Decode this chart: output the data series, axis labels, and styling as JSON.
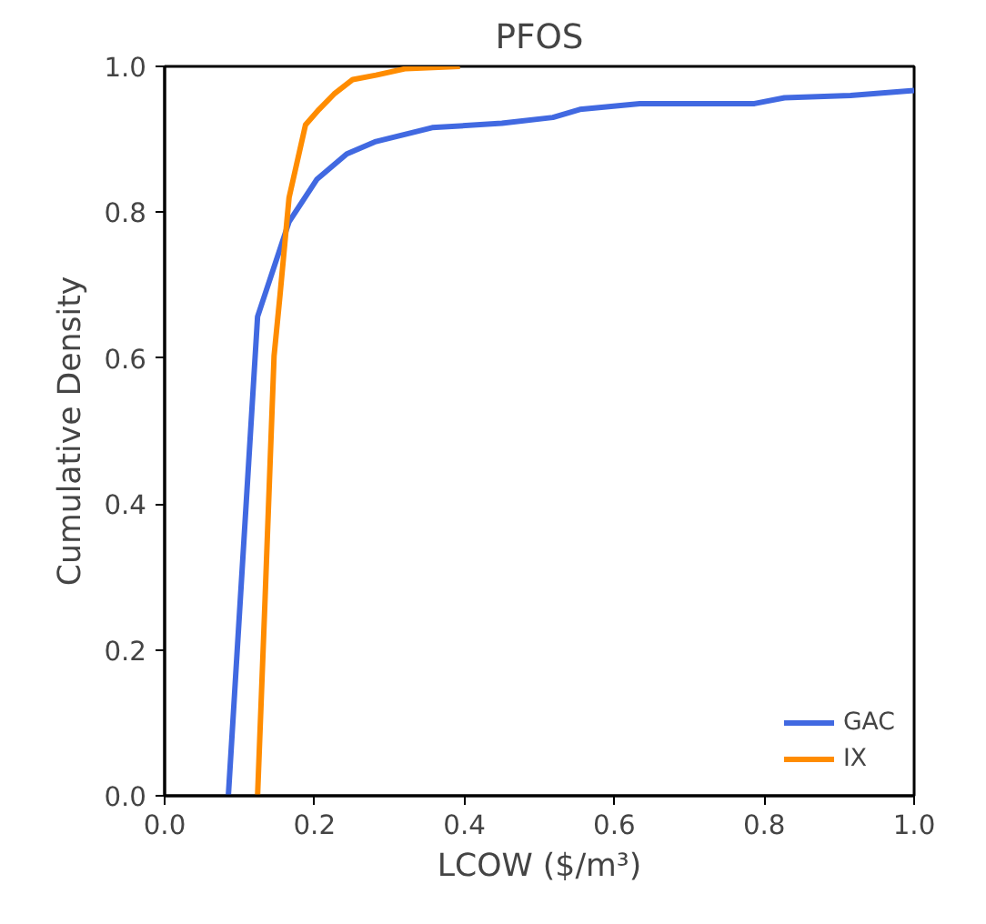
{
  "chart_data": {
    "type": "line",
    "title": "PFOS",
    "xlabel": "LCOW ($/m³)",
    "ylabel": "Cumulative Density",
    "xlim": [
      0.0,
      1.0
    ],
    "ylim": [
      0.0,
      1.0
    ],
    "xticks": [
      {
        "value": 0,
        "label": "0.0"
      },
      0.2,
      0.4,
      0.6,
      0.8,
      {
        "value": 1,
        "label": "1.0"
      }
    ],
    "yticks": [
      {
        "value": 0,
        "label": "0.0"
      },
      0.2,
      0.4,
      0.6,
      0.8,
      {
        "value": 1,
        "label": "1.0"
      }
    ],
    "grid": false,
    "legend": "bottom right",
    "marker": "none",
    "line_style": "solid",
    "series": [
      {
        "name": "GAC",
        "color": "#4169e1",
        "x": [
          0.085,
          0.124,
          0.166,
          0.203,
          0.243,
          0.282,
          0.357,
          0.45,
          0.518,
          0.554,
          0.634,
          0.787,
          0.827,
          0.915,
          1.0
        ],
        "values": [
          0.0,
          0.657,
          0.787,
          0.845,
          0.88,
          0.897,
          0.916,
          0.922,
          0.93,
          0.941,
          0.949,
          0.949,
          0.957,
          0.96,
          0.967
        ]
      },
      {
        "name": "IX",
        "color": "#ff8c00",
        "x": [
          0.124,
          0.134,
          0.146,
          0.154,
          0.166,
          0.188,
          0.206,
          0.226,
          0.251,
          0.282,
          0.322,
          0.394
        ],
        "values": [
          0.0,
          0.27,
          0.603,
          0.687,
          0.82,
          0.92,
          0.941,
          0.962,
          0.982,
          0.988,
          0.997,
          1.0
        ]
      }
    ]
  }
}
